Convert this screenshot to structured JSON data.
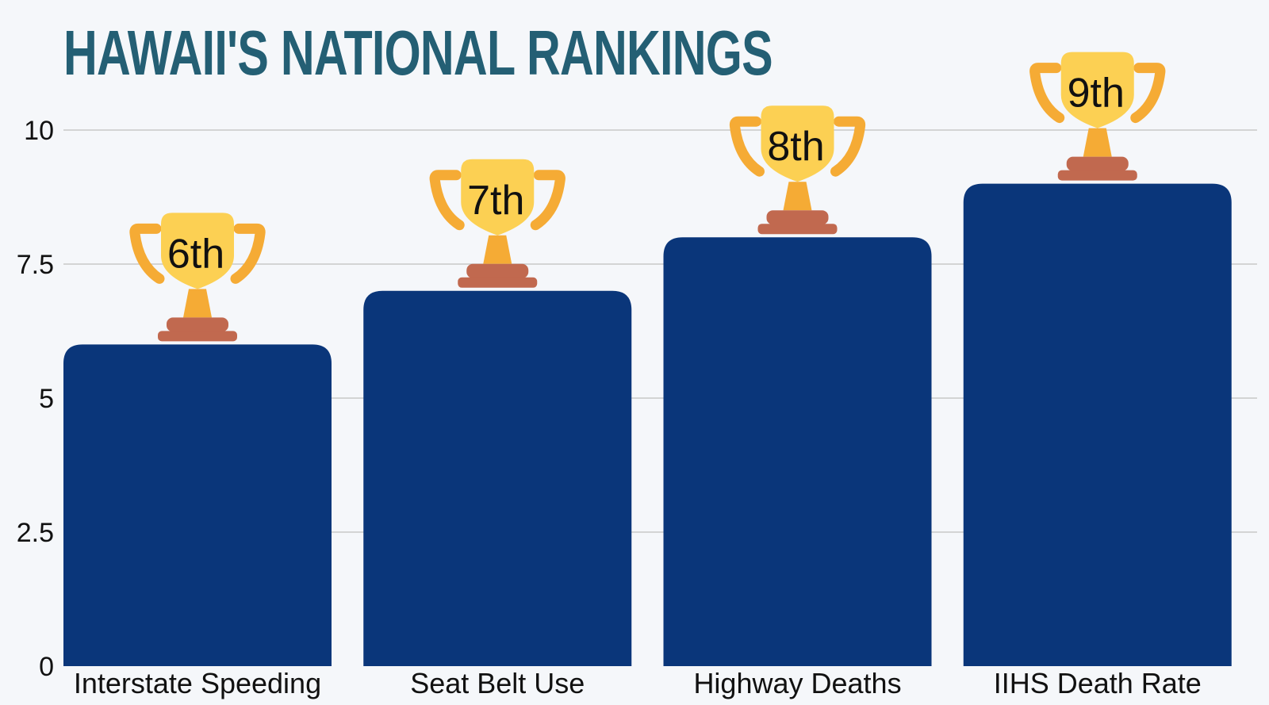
{
  "chart_data": {
    "type": "bar",
    "title": "HAWAII'S NATIONAL RANKINGS",
    "categories": [
      "Interstate Speeding",
      "Seat Belt Use",
      "Highway Deaths",
      "IIHS Death Rate"
    ],
    "values": [
      6,
      7,
      8,
      9
    ],
    "data_labels": [
      "6th",
      "7th",
      "8th",
      "9th"
    ],
    "ylim": [
      0,
      10
    ],
    "yticks": [
      0,
      2.5,
      5,
      7.5,
      10
    ],
    "ytick_labels": [
      "0",
      "2.5",
      "5",
      "7.5",
      "10"
    ],
    "xlabel": "",
    "ylabel": "",
    "grid": true,
    "legend": "none",
    "marker_icon": "trophy-icon",
    "colors": {
      "bar": "#0a367a",
      "title": "#245f74",
      "grid": "#c8c8c8",
      "trophy_cup": "#fcd053",
      "trophy_handles": "#f5ab35",
      "trophy_base": "#c1694f",
      "background": "#f5f7fa"
    }
  }
}
